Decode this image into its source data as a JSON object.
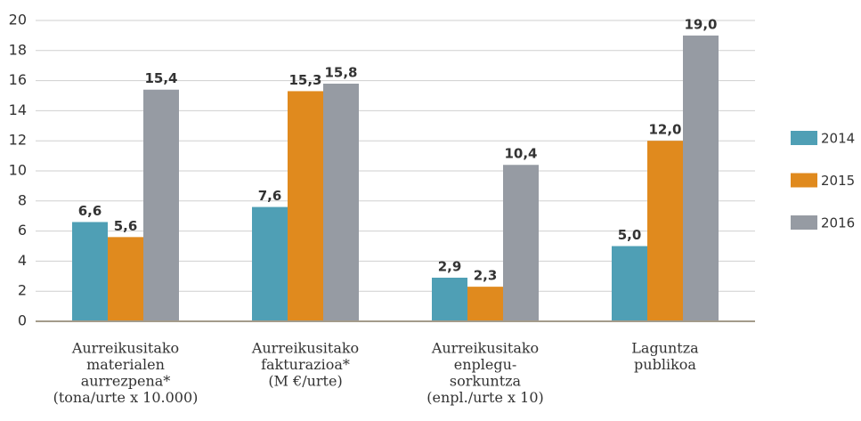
{
  "chart_data": {
    "type": "bar",
    "categories": [
      [
        "Aurreikusitako",
        "materialen",
        "aurrezpena*",
        "(tona/urte x 10.000)"
      ],
      [
        "Aurreikusitako",
        "fakturazioa*",
        "(M €/urte)"
      ],
      [
        "Aurreikusitako",
        "enplegu-",
        "sorkuntza",
        "(enpl./urte x 10)"
      ],
      [
        "Laguntza",
        "publikoa"
      ]
    ],
    "series": [
      {
        "name": "2014",
        "color": "#4f9fb5",
        "values": [
          6.6,
          7.6,
          2.9,
          5.0
        ],
        "value_labels": [
          "6,6",
          "7,6",
          "2,9",
          "5,0"
        ]
      },
      {
        "name": "2015",
        "color": "#e08a1e",
        "values": [
          5.6,
          15.3,
          2.3,
          12.0
        ],
        "value_labels": [
          "5,6",
          "15,3",
          "2,3",
          "12,0"
        ]
      },
      {
        "name": "2016",
        "color": "#969ba3",
        "values": [
          15.4,
          15.8,
          10.4,
          19.0
        ],
        "value_labels": [
          "15,4",
          "15,8",
          "10,4",
          "19,0"
        ]
      }
    ],
    "ylim": [
      0,
      20
    ],
    "yticks": [
      0,
      2,
      4,
      6,
      8,
      10,
      12,
      14,
      16,
      18,
      20
    ],
    "grid": true,
    "legend": "right"
  }
}
